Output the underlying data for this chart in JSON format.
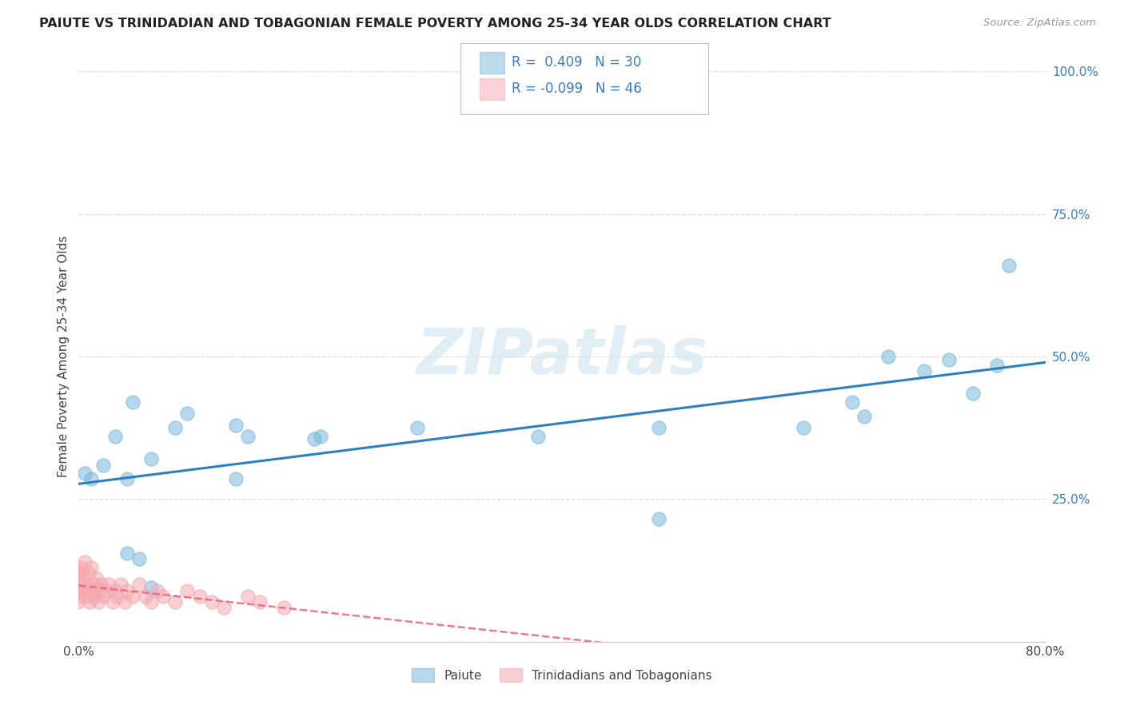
{
  "title": "PAIUTE VS TRINIDADIAN AND TOBAGONIAN FEMALE POVERTY AMONG 25-34 YEAR OLDS CORRELATION CHART",
  "source": "Source: ZipAtlas.com",
  "ylabel": "Female Poverty Among 25-34 Year Olds",
  "xlim": [
    0.0,
    0.8
  ],
  "ylim": [
    0.0,
    1.0
  ],
  "watermark": "ZIPatlas",
  "paiute_color": "#7ab8d9",
  "trinidadian_color": "#f4a8b0",
  "paiute_line_color": "#2e7fbf",
  "trinidadian_line_color": "#e8637a",
  "paiute_label": "Paiute",
  "trinidadian_label": "Trinidadians and Tobagonians",
  "paiute_x": [
    0.005,
    0.01,
    0.02,
    0.03,
    0.045,
    0.06,
    0.09,
    0.14,
    0.195,
    0.48,
    0.6,
    0.64,
    0.7,
    0.76,
    0.04,
    0.08,
    0.13,
    0.05,
    0.06,
    0.04,
    0.28,
    0.48,
    0.65,
    0.72,
    0.74,
    0.13,
    0.2,
    0.38,
    0.67,
    0.77
  ],
  "paiute_y": [
    0.295,
    0.285,
    0.31,
    0.36,
    0.42,
    0.32,
    0.4,
    0.36,
    0.355,
    0.375,
    0.375,
    0.42,
    0.475,
    0.485,
    0.285,
    0.375,
    0.285,
    0.145,
    0.095,
    0.155,
    0.375,
    0.215,
    0.395,
    0.495,
    0.435,
    0.38,
    0.36,
    0.36,
    0.5,
    0.66
  ],
  "trinidadian_x": [
    0.0,
    0.0,
    0.0,
    0.001,
    0.001,
    0.002,
    0.002,
    0.003,
    0.004,
    0.005,
    0.005,
    0.006,
    0.007,
    0.008,
    0.009,
    0.01,
    0.01,
    0.012,
    0.013,
    0.015,
    0.015,
    0.016,
    0.018,
    0.02,
    0.022,
    0.025,
    0.028,
    0.03,
    0.032,
    0.035,
    0.038,
    0.04,
    0.045,
    0.05,
    0.055,
    0.06,
    0.065,
    0.07,
    0.08,
    0.09,
    0.1,
    0.11,
    0.12,
    0.14,
    0.15,
    0.17
  ],
  "trinidadian_y": [
    0.12,
    0.09,
    0.07,
    0.11,
    0.09,
    0.13,
    0.08,
    0.12,
    0.1,
    0.14,
    0.09,
    0.1,
    0.08,
    0.12,
    0.07,
    0.13,
    0.09,
    0.1,
    0.08,
    0.11,
    0.09,
    0.07,
    0.1,
    0.08,
    0.09,
    0.1,
    0.07,
    0.09,
    0.08,
    0.1,
    0.07,
    0.09,
    0.08,
    0.1,
    0.08,
    0.07,
    0.09,
    0.08,
    0.07,
    0.09,
    0.08,
    0.07,
    0.06,
    0.08,
    0.07,
    0.06
  ],
  "background_color": "#ffffff",
  "grid_color": "#dddddd"
}
